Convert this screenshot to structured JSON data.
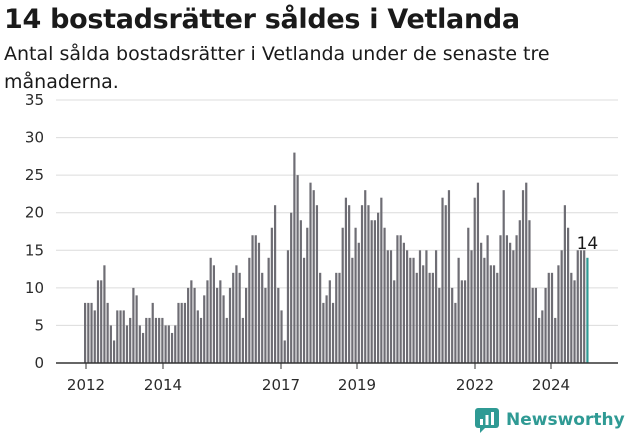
{
  "chart_data": {
    "type": "bar",
    "title": "14 bostadsrätter såldes i Vetlanda",
    "subtitle": "Antal sålda bostadsrätter i Vetlanda under de senaste tre månaderna.",
    "ylim": [
      0,
      35
    ],
    "yticks": [
      0,
      5,
      10,
      15,
      20,
      25,
      30,
      35
    ],
    "xticks": [
      "2012",
      "2014",
      "2017",
      "2019",
      "2022",
      "2024"
    ],
    "grid": true,
    "values": [
      8,
      8,
      8,
      7,
      11,
      11,
      13,
      8,
      5,
      3,
      7,
      7,
      7,
      5,
      6,
      10,
      9,
      5,
      4,
      6,
      6,
      8,
      6,
      6,
      6,
      5,
      5,
      4,
      5,
      8,
      8,
      8,
      10,
      11,
      10,
      7,
      6,
      9,
      11,
      14,
      13,
      10,
      11,
      9,
      6,
      10,
      12,
      13,
      12,
      6,
      10,
      14,
      17,
      17,
      16,
      12,
      10,
      14,
      18,
      21,
      10,
      7,
      3,
      15,
      20,
      28,
      25,
      19,
      14,
      18,
      24,
      23,
      21,
      12,
      8,
      9,
      11,
      8,
      12,
      12,
      18,
      22,
      21,
      14,
      18,
      16,
      21,
      23,
      21,
      19,
      19,
      20,
      22,
      18,
      15,
      15,
      11,
      17,
      17,
      16,
      15,
      14,
      14,
      12,
      15,
      13,
      15,
      12,
      12,
      15,
      10,
      22,
      21,
      23,
      10,
      8,
      14,
      11,
      11,
      18,
      15,
      22,
      24,
      16,
      14,
      17,
      13,
      13,
      12,
      17,
      23,
      17,
      16,
      15,
      17,
      19,
      23,
      24,
      19,
      10,
      10,
      6,
      7,
      10,
      12,
      12,
      6,
      13,
      15,
      21,
      18,
      12,
      11,
      15,
      15,
      15,
      14
    ],
    "last_value_label": "14",
    "bar_color": "#6e6d74",
    "highlight_color": "#2f9a94"
  },
  "branding": {
    "name": "Newsworthy",
    "icon": "newsworthy-logo-icon",
    "color": "#2f9a94"
  }
}
